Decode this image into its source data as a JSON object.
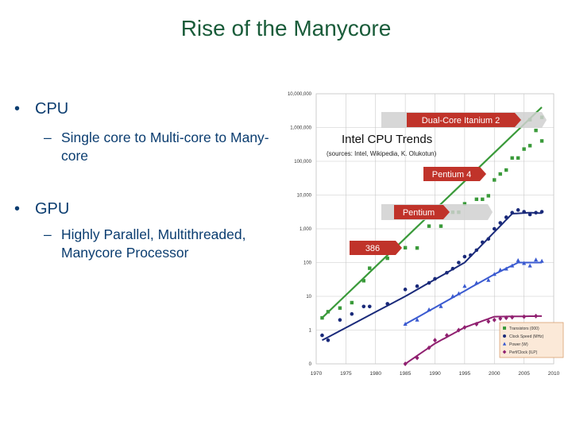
{
  "slide": {
    "title": "Rise of the Manycore",
    "bullet_marker": "•",
    "dash_marker": "–",
    "bullets": [
      {
        "label": "CPU",
        "sub": "Single core to Multi-core to Many-core"
      },
      {
        "label": "GPU",
        "sub": "Highly Parallel, Multithreaded, Manycore Processor"
      }
    ]
  },
  "chart_data": {
    "type": "scatter",
    "title": "Intel CPU Trends",
    "subtitle": "(sources: Intel, Wikipedia, K. Olukotun)",
    "xlabel": "",
    "ylabel": "",
    "scale": "log",
    "xlim": [
      1970,
      2010
    ],
    "x_ticks": [
      "1970",
      "1975",
      "1980",
      "1985",
      "1990",
      "1995",
      "2000",
      "2005",
      "2010"
    ],
    "y_ticks": [
      "0",
      "1",
      "10",
      "100",
      "1,000",
      "10,000",
      "100,000",
      "1,000,000",
      "10,000,000"
    ],
    "colors": {
      "transistors": "#3a9a3a",
      "clock": "#1a2a7a",
      "power": "#3a5ad0",
      "perf": "#902070",
      "callout_red": "#c0332a",
      "callout_gray": "#d0d0d0"
    },
    "legend": {
      "position": "bottom-right",
      "items": [
        "Transistors (000)",
        "Clock Speed (MHz)",
        "Power (W)",
        "Perf/Clock (ILP)"
      ]
    },
    "callouts": [
      {
        "text": "Dual-Core Itanium 2",
        "year": 2006
      },
      {
        "text": "Pentium 4",
        "year": 2000
      },
      {
        "text": "Pentium",
        "year": 1993
      },
      {
        "text": "386",
        "year": 1985
      }
    ],
    "series": [
      {
        "name": "Transistors (000)",
        "marker": "square",
        "trend": [
          [
            1971,
            2.3
          ],
          [
            2008,
            4000000
          ]
        ],
        "points": [
          [
            1971,
            2.3
          ],
          [
            1972,
            3.5
          ],
          [
            1974,
            4.5
          ],
          [
            1976,
            6.5
          ],
          [
            1978,
            29
          ],
          [
            1979,
            68
          ],
          [
            1982,
            134
          ],
          [
            1985,
            275
          ],
          [
            1987,
            270
          ],
          [
            1989,
            1200
          ],
          [
            1991,
            1200
          ],
          [
            1993,
            3100
          ],
          [
            1994,
            3100
          ],
          [
            1995,
            5500
          ],
          [
            1997,
            7500
          ],
          [
            1998,
            7500
          ],
          [
            1999,
            9500
          ],
          [
            2000,
            28000
          ],
          [
            2001,
            42000
          ],
          [
            2002,
            55000
          ],
          [
            2003,
            125000
          ],
          [
            2004,
            125000
          ],
          [
            2005,
            230000
          ],
          [
            2006,
            290000
          ],
          [
            2006,
            1700000
          ],
          [
            2007,
            820000
          ],
          [
            2008,
            2000000
          ],
          [
            2008,
            400000
          ]
        ]
      },
      {
        "name": "Clock Speed (MHz)",
        "marker": "circle",
        "trend": [
          [
            1971,
            0.5
          ],
          [
            1985,
            10
          ],
          [
            1995,
            100
          ],
          [
            2000,
            800
          ],
          [
            2003,
            2800
          ],
          [
            2006,
            3000
          ],
          [
            2008,
            2900
          ]
        ],
        "points": [
          [
            1971,
            0.7
          ],
          [
            1972,
            0.5
          ],
          [
            1974,
            2
          ],
          [
            1976,
            3
          ],
          [
            1978,
            5
          ],
          [
            1979,
            5
          ],
          [
            1982,
            6
          ],
          [
            1985,
            16
          ],
          [
            1987,
            20
          ],
          [
            1989,
            25
          ],
          [
            1990,
            33
          ],
          [
            1992,
            50
          ],
          [
            1993,
            66
          ],
          [
            1994,
            100
          ],
          [
            1995,
            150
          ],
          [
            1996,
            166
          ],
          [
            1997,
            233
          ],
          [
            1998,
            400
          ],
          [
            1999,
            500
          ],
          [
            2000,
            1000
          ],
          [
            2001,
            1500
          ],
          [
            2002,
            2200
          ],
          [
            2003,
            3000
          ],
          [
            2004,
            3600
          ],
          [
            2005,
            3200
          ],
          [
            2006,
            2660
          ],
          [
            2007,
            3000
          ],
          [
            2008,
            3200
          ]
        ]
      },
      {
        "name": "Power (W)",
        "marker": "triangle",
        "trend": [
          [
            1985,
            1.5
          ],
          [
            2000,
            45
          ],
          [
            2004,
            100
          ],
          [
            2008,
            100
          ]
        ],
        "points": [
          [
            1985,
            1.5
          ],
          [
            1987,
            2
          ],
          [
            1989,
            4
          ],
          [
            1991,
            5
          ],
          [
            1993,
            10
          ],
          [
            1994,
            12
          ],
          [
            1995,
            20
          ],
          [
            1997,
            25
          ],
          [
            1999,
            30
          ],
          [
            2000,
            45
          ],
          [
            2001,
            60
          ],
          [
            2002,
            65
          ],
          [
            2003,
            80
          ],
          [
            2004,
            115
          ],
          [
            2005,
            95
          ],
          [
            2006,
            80
          ],
          [
            2007,
            120
          ],
          [
            2008,
            110
          ]
        ]
      },
      {
        "name": "Perf/Clock (ILP)",
        "marker": "diamond",
        "trend": [
          [
            1985,
            0.1
          ],
          [
            1990,
            0.4
          ],
          [
            1995,
            1.2
          ],
          [
            2000,
            2.5
          ],
          [
            2008,
            2.6
          ]
        ],
        "points": [
          [
            1985,
            0.1
          ],
          [
            1987,
            0.15
          ],
          [
            1989,
            0.3
          ],
          [
            1990,
            0.5
          ],
          [
            1992,
            0.7
          ],
          [
            1994,
            1
          ],
          [
            1995,
            1.2
          ],
          [
            1997,
            1.5
          ],
          [
            1999,
            1.8
          ],
          [
            2000,
            2.0
          ],
          [
            2001,
            2.2
          ],
          [
            2002,
            2.3
          ],
          [
            2003,
            2.4
          ],
          [
            2005,
            2.5
          ],
          [
            2007,
            2.6
          ]
        ]
      }
    ]
  }
}
